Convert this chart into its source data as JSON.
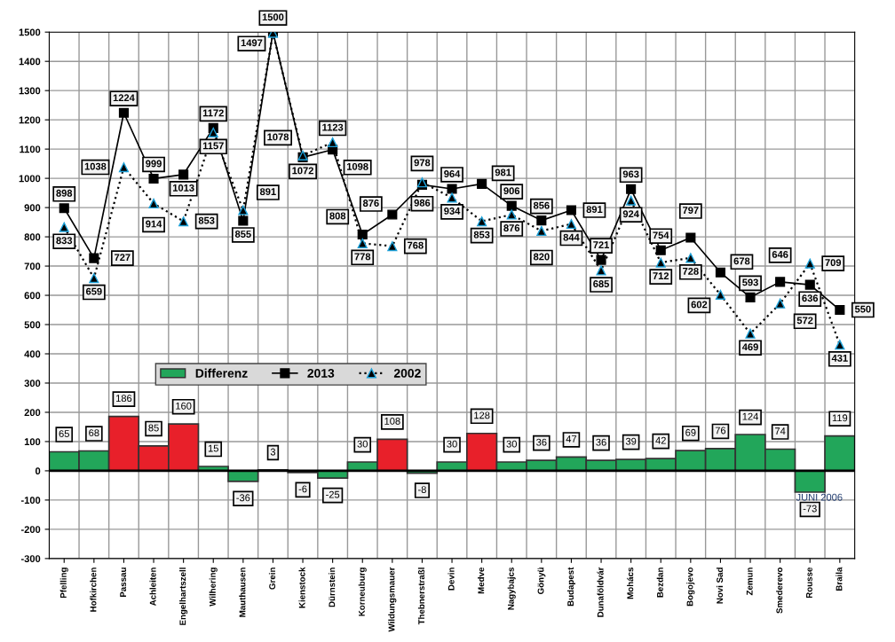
{
  "chart_data": {
    "type": "line",
    "categories": [
      "Pfelling",
      "Hofkirchen",
      "Passau",
      "Achleiten",
      "Engelhartszell",
      "Wilhering",
      "Mauthausen",
      "Grein",
      "Kienstock",
      "Dürnstein",
      "Korneuburg",
      "Wildungsmauer",
      "Thebnerstraßl",
      "Devin",
      "Medve",
      "Nagybajcs",
      "Gönyü",
      "Budapest",
      "Dunaföldvár",
      "Mohács",
      "Bezdan",
      "Bogojevo",
      "Novi Sad",
      "Zemun",
      "Smederevo",
      "Rousse",
      "Braila"
    ],
    "series": [
      {
        "name": "Differenz",
        "type": "bar",
        "color": "#22a65a",
        "values": [
          65,
          68,
          186,
          85,
          160,
          15,
          -36,
          3,
          -6,
          -25,
          30,
          108,
          -8,
          30,
          128,
          30,
          36,
          47,
          36,
          39,
          42,
          69,
          76,
          124,
          74,
          -73,
          119
        ],
        "colors": [
          "#22a65a",
          "#22a65a",
          "#e8202a",
          "#e8202a",
          "#e8202a",
          "#22a65a",
          "#22a65a",
          "#22a65a",
          "#22a65a",
          "#22a65a",
          "#22a65a",
          "#e8202a",
          "#22a65a",
          "#22a65a",
          "#e8202a",
          "#22a65a",
          "#22a65a",
          "#22a65a",
          "#22a65a",
          "#22a65a",
          "#22a65a",
          "#22a65a",
          "#22a65a",
          "#22a65a",
          "#22a65a",
          "#22a65a",
          "#22a65a"
        ]
      },
      {
        "name": "2013",
        "color": "#000000",
        "marker": "square",
        "line_style": "solid",
        "values": [
          898,
          727,
          1224,
          999,
          1013,
          1172,
          855,
          1500,
          1072,
          1098,
          808,
          876,
          978,
          964,
          981,
          906,
          856,
          891,
          721,
          963,
          754,
          797,
          678,
          593,
          646,
          636,
          550
        ]
      },
      {
        "name": "2002",
        "color": "#000000",
        "marker": "triangle",
        "line_style": "dotted",
        "values": [
          833,
          659,
          1038,
          914,
          853,
          1157,
          891,
          1497,
          1078,
          1123,
          778,
          768,
          986,
          934,
          853,
          876,
          820,
          844,
          685,
          924,
          712,
          728,
          602,
          469,
          572,
          709,
          431
        ]
      }
    ],
    "ylim": [
      -300,
      1500
    ],
    "yticks": [
      -300,
      -200,
      -100,
      0,
      100,
      200,
      300,
      400,
      500,
      600,
      700,
      800,
      900,
      1000,
      1100,
      1200,
      1300,
      1400,
      1500
    ],
    "grid": true,
    "legend": "center",
    "data_labels": true,
    "annotations": [
      "JUNI 2006"
    ]
  }
}
